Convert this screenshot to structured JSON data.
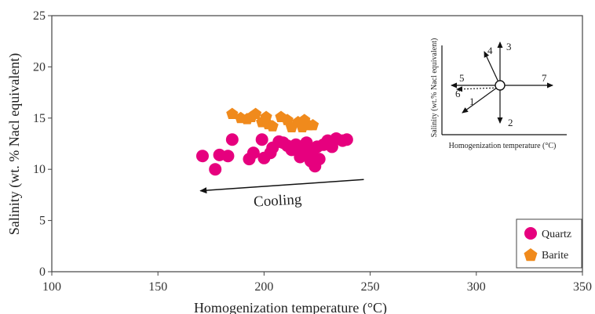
{
  "chart_data": {
    "type": "scatter",
    "xlabel": "Homogenization temperature (°C)",
    "ylabel": "Salinity (wt. % Nacl equivalent)",
    "xlim": [
      100,
      350
    ],
    "ylim": [
      0,
      25
    ],
    "xticks": [
      "100",
      "150",
      "200",
      "250",
      "300",
      "350"
    ],
    "yticks": [
      "0",
      "5",
      "10",
      "15",
      "20",
      "25"
    ],
    "grid": false,
    "legend_position": "bottom-right",
    "series": [
      {
        "name": "Quartz",
        "marker": "circle",
        "color": "#e6007e",
        "points": [
          [
            171,
            11.3
          ],
          [
            177,
            10.0
          ],
          [
            179,
            11.4
          ],
          [
            183,
            11.3
          ],
          [
            185,
            12.9
          ],
          [
            193,
            11.0
          ],
          [
            195,
            11.6
          ],
          [
            199,
            12.9
          ],
          [
            200,
            11.1
          ],
          [
            203,
            11.6
          ],
          [
            204,
            12.1
          ],
          [
            207,
            12.7
          ],
          [
            209,
            12.6
          ],
          [
            211,
            12.3
          ],
          [
            213,
            11.9
          ],
          [
            215,
            12.4
          ],
          [
            217,
            11.2
          ],
          [
            218,
            12.0
          ],
          [
            220,
            12.6
          ],
          [
            221,
            11.5
          ],
          [
            222,
            10.8
          ],
          [
            223,
            11.9
          ],
          [
            224,
            10.3
          ],
          [
            225,
            12.2
          ],
          [
            226,
            11.0
          ],
          [
            228,
            12.4
          ],
          [
            230,
            12.8
          ],
          [
            232,
            12.2
          ],
          [
            234,
            13.0
          ],
          [
            237,
            12.8
          ],
          [
            239,
            12.9
          ]
        ]
      },
      {
        "name": "Barite",
        "marker": "pentagon",
        "color": "#f08a1c",
        "points": [
          [
            185,
            15.4
          ],
          [
            189,
            15.0
          ],
          [
            192,
            14.9
          ],
          [
            194,
            15.1
          ],
          [
            196,
            15.4
          ],
          [
            199,
            14.6
          ],
          [
            201,
            15.1
          ],
          [
            202,
            14.4
          ],
          [
            204,
            14.2
          ],
          [
            208,
            15.1
          ],
          [
            211,
            14.8
          ],
          [
            213,
            14.1
          ],
          [
            216,
            14.6
          ],
          [
            218,
            14.1
          ],
          [
            219,
            14.8
          ],
          [
            221,
            14.3
          ],
          [
            223,
            14.3
          ]
        ]
      }
    ],
    "annotation": {
      "text": "Cooling",
      "arrow_from": [
        247,
        9.0
      ],
      "arrow_to": [
        170,
        7.9
      ]
    },
    "inset": {
      "xlabel": "Homogenization temperature (°C)",
      "ylabel": "Salinity (wt.% Nacl equivalent)",
      "vectors": [
        {
          "label": "1",
          "direction": "down-left"
        },
        {
          "label": "2",
          "direction": "down"
        },
        {
          "label": "3",
          "direction": "up"
        },
        {
          "label": "4",
          "direction": "up-left"
        },
        {
          "label": "5",
          "direction": "left"
        },
        {
          "label": "6",
          "direction": "left-dotted"
        },
        {
          "label": "7",
          "direction": "right"
        }
      ]
    }
  }
}
